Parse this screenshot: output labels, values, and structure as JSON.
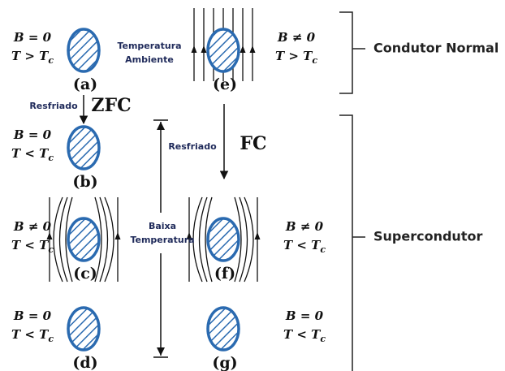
{
  "panels": [
    {
      "label": "(a)",
      "condition": {
        "line1": "B = 0",
        "line2": "T > T",
        "line2_sub": "c"
      }
    },
    {
      "label": "(b)",
      "condition": {
        "line1": "B = 0",
        "line2": "T < T",
        "line2_sub": "c"
      }
    },
    {
      "label": "(c)",
      "condition": {
        "line1": "B ≠ 0",
        "line2": "T < T",
        "line2_sub": "c"
      }
    },
    {
      "label": "(d)",
      "condition": {
        "line1": "B = 0",
        "line2": "T < T",
        "line2_sub": "c"
      }
    },
    {
      "label": "(e)",
      "condition": {
        "line1": "B ≠ 0",
        "line2": "T > T",
        "line2_sub": "c"
      }
    },
    {
      "label": "(f)",
      "condition": {
        "line1": "B ≠ 0",
        "line2": "T < T",
        "line2_sub": "c"
      }
    },
    {
      "label": "(g)",
      "condition": {
        "line1": "B = 0",
        "line2": "T < T",
        "line2_sub": "c"
      }
    }
  ],
  "annotations": {
    "room_temperature": [
      "Temperatura",
      "Ambiente"
    ],
    "cooled_zfc": "Resfriado",
    "zfc": "ZFC",
    "cooled_fc": "Resfriado",
    "fc": "FC",
    "low_temperature": [
      "Baixa",
      "Temperatura"
    ]
  },
  "brackets": {
    "normal": "Condutor Normal",
    "super": "Supercondutor"
  }
}
